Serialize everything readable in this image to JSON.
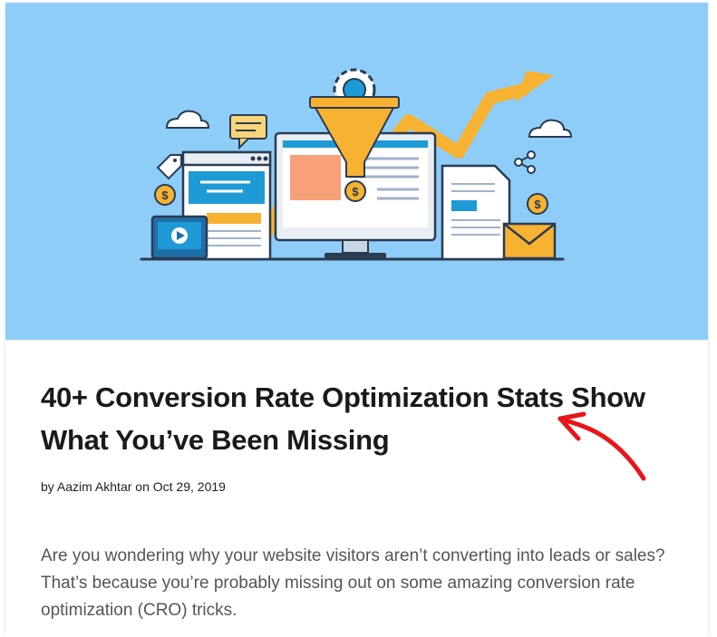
{
  "article": {
    "title": "40+ Conversion Rate Optimization Stats Show What You’ve Been Missing",
    "byline_prefix": "by",
    "author": "Aazim Akhtar",
    "date_prefix": "on",
    "date": "Oct 29, 2019",
    "excerpt": "Are you wondering why your website visitors aren’t converting into leads or sales? That’s because you’re probably missing out on some amazing conversion rate optimization (CRO) tricks."
  },
  "colors": {
    "hero_background": "#8ecdf8",
    "funnel": "#f8b231",
    "arrow": "#f8b231",
    "monitor_frame": "#e8eef4",
    "annotation": "#e8151b"
  },
  "icons": [
    "funnel-icon",
    "gear-icon",
    "monitor-icon",
    "trend-arrow-icon",
    "coin-icon",
    "cloud-icon",
    "chat-bubble-icon",
    "tag-icon",
    "video-player-icon",
    "document-icon",
    "envelope-icon",
    "share-icon",
    "hand-drawn-arrow"
  ]
}
